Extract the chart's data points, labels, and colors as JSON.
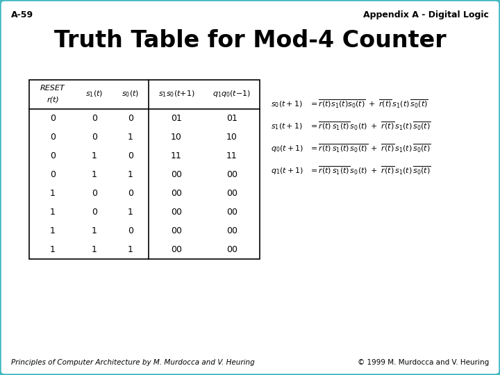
{
  "slide_number": "A-59",
  "appendix_label": "Appendix A - Digital Logic",
  "title": "Truth Table for Mod-4 Counter",
  "footer_left": "Principles of Computer Architecture by M. Murdocca and V. Heuring",
  "footer_right": "© 1999 M. Murdocca and V. Heuring",
  "background_color": "#ffffff",
  "border_color": "#3cb6c0",
  "table_rows": [
    [
      "0",
      "0",
      "0",
      "01",
      "01"
    ],
    [
      "0",
      "0",
      "1",
      "10",
      "10"
    ],
    [
      "0",
      "1",
      "0",
      "11",
      "11"
    ],
    [
      "0",
      "1",
      "1",
      "00",
      "00"
    ],
    [
      "1",
      "0",
      "0",
      "00",
      "00"
    ],
    [
      "1",
      "0",
      "1",
      "00",
      "00"
    ],
    [
      "1",
      "1",
      "0",
      "00",
      "00"
    ],
    [
      "1",
      "1",
      "1",
      "00",
      "00"
    ]
  ],
  "eq_lhs": [
    "$s_0(t+1)$",
    "$s_1(t+1)$",
    "$q_0(t+1)$",
    "$q_1(t+1)$"
  ],
  "eq_term1": [
    "$\\overline{r(t)s_1(t)s_0(t)}$",
    "$\\overline{r(t)}\\,\\overline{s_1(t)}s_0(t)$",
    "$\\overline{r(t)}\\,\\overline{s_1(t)}\\,\\overline{s_0(t)}$",
    "$\\overline{r(t)}\\,\\overline{s_1(t)}s_0(t)$"
  ],
  "eq_term2": [
    "$\\overline{r(t)}s_1(t)\\overline{s_0(t)}$",
    "$\\overline{r(t)}s_1(t)\\overline{s_0(t)}$",
    "$\\overline{r(t)}s_1(t)\\overline{s_0(t)}$",
    "$\\overline{r(t)}s_1(t)\\overline{s_0(t)}$"
  ]
}
